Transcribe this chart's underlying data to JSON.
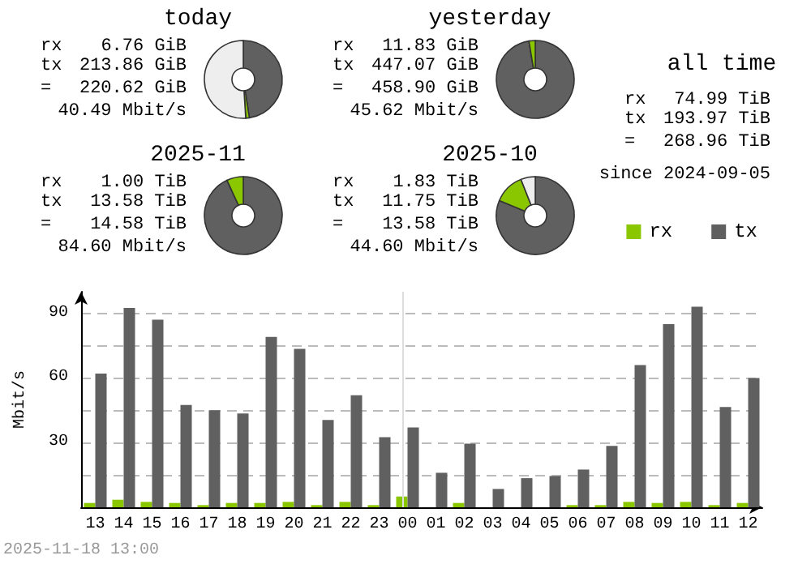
{
  "chart_data": [
    {
      "type": "donut",
      "title": "today",
      "categories": [
        null,
        null,
        null
      ],
      "values": [
        47.5,
        1.5,
        51
      ],
      "colors": [
        "#606060",
        "#8bc700",
        "#eeeeee"
      ],
      "annotations": [
        "rx 6.76 GiB",
        "tx 213.86 GiB",
        "= 220.62 GiB",
        "40.49 Mbit/s"
      ]
    },
    {
      "type": "donut",
      "title": "yesterday",
      "categories": [
        null,
        null
      ],
      "values": [
        97.4,
        2.6
      ],
      "colors": [
        "#606060",
        "#8bc700"
      ],
      "annotations": [
        "rx 11.83 GiB",
        "tx 447.07 GiB",
        "= 458.90 GiB",
        "45.62 Mbit/s"
      ]
    },
    {
      "type": "other",
      "title": "all time",
      "annotations": [
        "rx 74.99 TiB",
        "tx 193.97 TiB",
        "= 268.96 TiB",
        "since 2024-09-05"
      ]
    },
    {
      "type": "donut",
      "title": "2025-11",
      "categories": [
        null,
        null
      ],
      "values": [
        93.1,
        6.9
      ],
      "colors": [
        "#606060",
        "#8bc700"
      ],
      "annotations": [
        "rx 1.00 TiB",
        "tx 13.58 TiB",
        "= 14.58 TiB",
        "84.60 Mbit/s"
      ]
    },
    {
      "type": "donut",
      "title": "2025-10",
      "categories": [
        null,
        null,
        null
      ],
      "values": [
        81.3,
        12.7,
        6
      ],
      "colors": [
        "#606060",
        "#8bc700",
        "#eeeeee"
      ],
      "annotations": [
        "rx 1.83 TiB",
        "tx 11.75 TiB",
        "= 13.58 TiB",
        "44.60 Mbit/s"
      ]
    },
    {
      "type": "bar",
      "ylabel": "Mbit/s",
      "categories": [
        "13",
        "14",
        "15",
        "16",
        "17",
        "18",
        "19",
        "20",
        "21",
        "22",
        "23",
        "00",
        "01",
        "02",
        "03",
        "04",
        "05",
        "06",
        "07",
        "08",
        "09",
        "10",
        "11",
        "12"
      ],
      "series": [
        {
          "name": "rx",
          "color": "#8bc700",
          "values": [
            2,
            3.5,
            2.5,
            2,
            1,
            2,
            2,
            2.5,
            1,
            2.5,
            1,
            5,
            0,
            2,
            0,
            0,
            0,
            1,
            1,
            2.5,
            2,
            2.5,
            1,
            2
          ]
        },
        {
          "name": "tx",
          "color": "#606060",
          "values": [
            62,
            92.5,
            87,
            47.5,
            45,
            43.5,
            79,
            73.5,
            40.5,
            52,
            32.5,
            37,
            16,
            29.5,
            8.5,
            13.5,
            14.5,
            17.5,
            28.5,
            66,
            85,
            93,
            46.5,
            60
          ]
        }
      ],
      "ylim": [
        0,
        100
      ],
      "yticks": [
        {
          "value": 15,
          "label": null
        },
        30,
        {
          "value": 45,
          "label": null
        },
        60,
        {
          "value": 75,
          "label": null
        },
        90
      ],
      "grid": "y",
      "legend": "top right",
      "ref_lines": [
        {
          "axis": "x",
          "value": "00",
          "color": "#dddddd"
        }
      ],
      "annotations": [
        "2025-11-18 13:00"
      ]
    }
  ]
}
